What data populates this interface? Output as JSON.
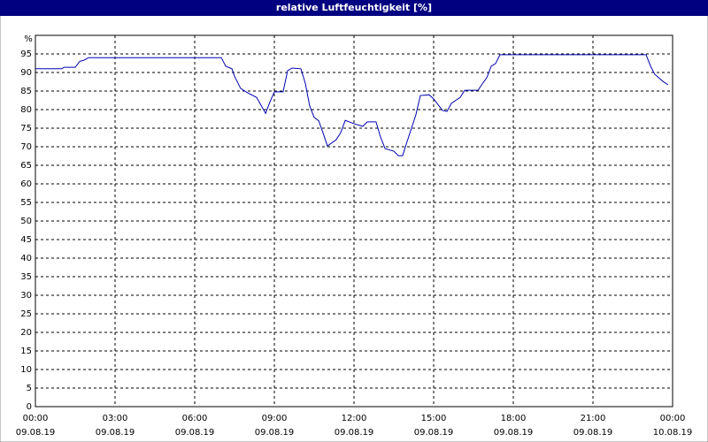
{
  "chart_data": {
    "type": "line",
    "title": "relative Luftfeuchtigkeit [%]",
    "y_label": "%",
    "x": [
      0,
      1,
      1.07,
      1.5,
      1.67,
      1.83,
      2,
      7,
      7.17,
      7.4,
      7.5,
      7.73,
      8,
      8.33,
      8.67,
      8.83,
      9,
      9.33,
      9.5,
      9.67,
      10,
      10.17,
      10.33,
      10.5,
      10.67,
      10.83,
      11,
      11.33,
      11.5,
      11.67,
      12,
      12.33,
      12.5,
      12.83,
      13,
      13.17,
      13.5,
      13.67,
      13.83,
      14,
      14.33,
      14.5,
      14.83,
      15,
      15.33,
      15.5,
      15.67,
      16,
      16.17,
      16.67,
      16.83,
      17,
      17.17,
      17.33,
      17.5,
      23,
      23.17,
      23.33,
      23.67,
      23.83
    ],
    "series": [
      {
        "name": "relative Luftfeuchtigkeit",
        "color": "#0000b0",
        "values": [
          91,
          91,
          91.4,
          91.4,
          93,
          93.3,
          94,
          94,
          91.7,
          91,
          89,
          85.7,
          84.5,
          83.3,
          79,
          82,
          84.8,
          84.8,
          90.5,
          91.2,
          91,
          87,
          81,
          77.9,
          77,
          73.8,
          70.2,
          71.9,
          73.8,
          77.1,
          76.2,
          75.5,
          76.7,
          76.7,
          72.6,
          69.5,
          68.8,
          67.6,
          67.6,
          71.4,
          78.6,
          83.8,
          84,
          82.9,
          79.8,
          79.5,
          81.7,
          83.3,
          85.2,
          85.2,
          86.9,
          88.6,
          91.7,
          92.4,
          94.8,
          94.8,
          91.7,
          89.5,
          87.4,
          86.7
        ]
      }
    ],
    "xlim": [
      0,
      24
    ],
    "xticks": [
      {
        "value": 0,
        "label": "00:00"
      },
      {
        "value": 3,
        "label": "03:00"
      },
      {
        "value": 6,
        "label": "06:00"
      },
      {
        "value": 9,
        "label": "09:00"
      },
      {
        "value": 12,
        "label": "12:00"
      },
      {
        "value": 15,
        "label": "15:00"
      },
      {
        "value": 18,
        "label": "18:00"
      },
      {
        "value": 21,
        "label": "21:00"
      },
      {
        "value": 24,
        "label": "00:00"
      }
    ],
    "xtick_dates": [
      "09.08.19",
      "09.08.19",
      "09.08.19",
      "09.08.19",
      "09.08.19",
      "09.08.19",
      "09.08.19",
      "09.08.19",
      "10.08.19"
    ],
    "ylim": [
      0,
      100
    ],
    "yticks": [
      0,
      5,
      10,
      15,
      20,
      25,
      30,
      35,
      40,
      45,
      50,
      55,
      60,
      65,
      70,
      75,
      80,
      85,
      90,
      95
    ],
    "grid": true
  }
}
